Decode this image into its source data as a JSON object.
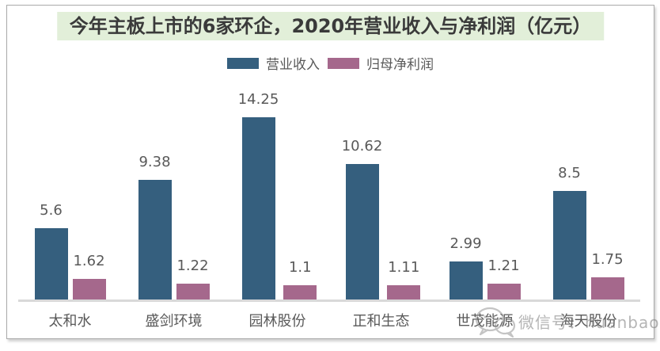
{
  "title": "今年主板上市的6家环企，2020年营业收入与净利润（亿元）",
  "title_bg_color": "#e2efd9",
  "watermark": {
    "icon": "wechat-logo",
    "text": "微信号：huanbaoq"
  },
  "chart_data": {
    "type": "bar",
    "title": "今年主板上市的6家环企，2020年营业收入与净利润（亿元）",
    "unit": "亿元",
    "categories": [
      "太和水",
      "盛剑环境",
      "园林股份",
      "正和生态",
      "世茂能源",
      "海天股份"
    ],
    "series": [
      {
        "name": "营业收入",
        "color": "#355f7e",
        "values": [
          5.6,
          9.38,
          14.25,
          10.62,
          2.99,
          8.5
        ]
      },
      {
        "name": "归母净利润",
        "color": "#a5688c",
        "values": [
          1.62,
          1.22,
          1.1,
          1.11,
          1.21,
          1.75
        ]
      }
    ],
    "value_labels": true,
    "grid": false,
    "legend_position": "top",
    "ylim": [
      0,
      14.25
    ],
    "xlabel": "",
    "ylabel": "",
    "axis_line_color": "#d9d9d9",
    "label_color": "#595959"
  }
}
